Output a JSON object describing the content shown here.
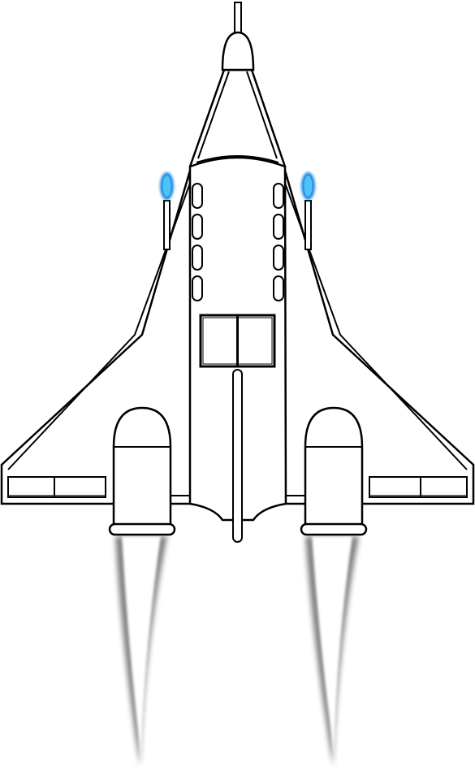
{
  "sprite": {
    "subject": "spaceship",
    "view": "top-down",
    "style": "line-art",
    "colors": {
      "background": "#ffffff",
      "outline": "#000000",
      "hull_fill": "#ffffff",
      "light_fill": "#4fc3f7",
      "light_glow": "#1e88e5",
      "exhaust": "#555555"
    },
    "parts": {
      "wings": 2,
      "engines": 2,
      "hull_vents_per_side": 4,
      "cockpit_windows": 2,
      "wing_panels_per_side": 2,
      "nav_lights": 2,
      "exhaust_trails": 2
    }
  }
}
